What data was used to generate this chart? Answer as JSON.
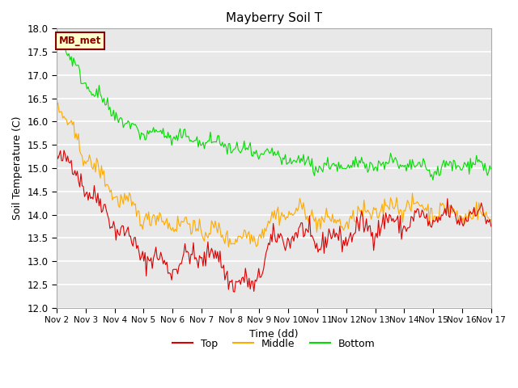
{
  "title": "Mayberry Soil T",
  "xlabel": "Time (dd)",
  "ylabel": "Soil Temperature (C)",
  "ylim": [
    12.0,
    18.0
  ],
  "yticks": [
    12.0,
    12.5,
    13.0,
    13.5,
    14.0,
    14.5,
    15.0,
    15.5,
    16.0,
    16.5,
    17.0,
    17.5,
    18.0
  ],
  "xtick_labels": [
    "Nov 2",
    "Nov 3",
    "Nov 4",
    "Nov 5",
    "Nov 6",
    "Nov 7",
    "Nov 8",
    "Nov 9",
    "Nov 10",
    "Nov 11",
    "Nov 12",
    "Nov 13",
    "Nov 14",
    "Nov 15",
    "Nov 16",
    "Nov 17"
  ],
  "color_top": "#dd0000",
  "color_middle": "#ffaa00",
  "color_bottom": "#00dd00",
  "bg_color": "#e8e8e8",
  "label_top": "Top",
  "label_middle": "Middle",
  "label_bottom": "Bottom",
  "mb_met_label": "MB_met",
  "n_points": 360,
  "seed": 42,
  "top_trend": [
    15.4,
    15.0,
    14.7,
    14.2,
    13.9,
    13.5,
    13.2,
    13.0,
    12.9,
    13.0,
    13.1,
    13.2,
    12.8,
    12.5,
    12.45,
    13.2,
    13.5,
    13.6,
    13.5,
    13.4,
    13.5,
    13.6,
    13.7,
    13.8,
    13.8,
    13.85,
    13.9,
    13.9,
    13.95,
    14.0,
    14.0,
    14.0
  ],
  "middle_trend": [
    16.4,
    15.8,
    15.3,
    14.9,
    14.5,
    14.2,
    14.0,
    13.9,
    13.85,
    13.8,
    13.7,
    13.65,
    13.55,
    13.5,
    13.5,
    13.8,
    14.0,
    14.1,
    14.0,
    13.9,
    13.8,
    13.9,
    14.0,
    14.1,
    14.2,
    14.2,
    14.15,
    14.1,
    14.05,
    14.0,
    14.0,
    14.0
  ],
  "bottom_trend": [
    17.85,
    17.3,
    16.9,
    16.5,
    16.2,
    15.9,
    15.8,
    15.75,
    15.7,
    15.65,
    15.6,
    15.55,
    15.5,
    15.4,
    15.3,
    15.3,
    15.2,
    15.15,
    15.1,
    15.05,
    15.0,
    15.05,
    15.1,
    15.1,
    15.1,
    15.05,
    15.0,
    14.95,
    15.0,
    15.1,
    15.1,
    15.0
  ]
}
